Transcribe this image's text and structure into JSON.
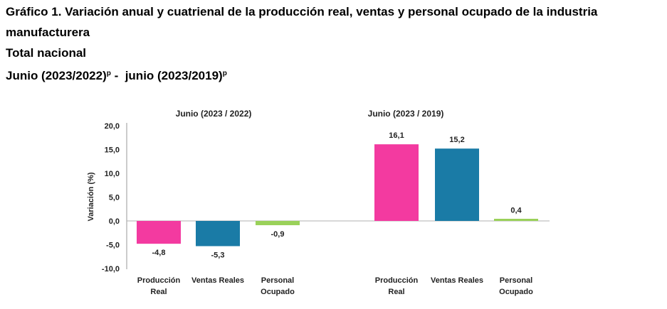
{
  "header": {
    "title_line1": "Gráfico 1. Variación anual y cuatrienal de la producción real, ventas y personal ocupado de la industria",
    "title_line2": "manufacturera",
    "subtitle": "Total nacional",
    "period_a": "Junio (2023/2022)",
    "period_a_sup": "p",
    "period_sep": " -  ",
    "period_b": "junio (2023/2019)",
    "period_b_sup": "p"
  },
  "chart_data": {
    "type": "bar",
    "ylabel": "Variación (%)",
    "ylim": [
      -10,
      20
    ],
    "yticks": [
      "20,0",
      "15,0",
      "10,0",
      "5,0",
      "0,0",
      "-5,0",
      "-10,0"
    ],
    "ytick_values": [
      20,
      15,
      10,
      5,
      0,
      -5,
      -10
    ],
    "grid": false,
    "legend": "none",
    "categories": [
      "Producción Real",
      "Ventas Reales",
      "Personal Ocupado"
    ],
    "category_lines": [
      [
        "Producción",
        "Real"
      ],
      [
        "Ventas Reales"
      ],
      [
        "Personal",
        "Ocupado"
      ]
    ],
    "colors": [
      "#f33aa0",
      "#1a7ba6",
      "#9ad15a"
    ],
    "groups": [
      {
        "name": "Junio (2023 / 2022)",
        "values": [
          -4.8,
          -5.3,
          -0.9
        ],
        "labels": [
          "-4,8",
          "-5,3",
          "-0,9"
        ]
      },
      {
        "name": "Junio (2023 / 2019)",
        "values": [
          16.1,
          15.2,
          0.4
        ],
        "labels": [
          "16,1",
          "15,2",
          "0,4"
        ]
      }
    ]
  }
}
